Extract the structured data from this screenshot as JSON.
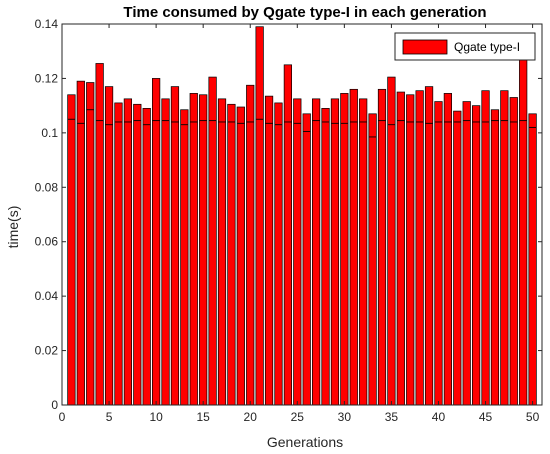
{
  "chart_data": {
    "type": "bar",
    "title": "Time consumed by Qgate type-I in each generation",
    "xlabel": "Generations",
    "ylabel": "time(s)",
    "xlim": [
      0,
      51
    ],
    "ylim": [
      0,
      0.14
    ],
    "xticks": [
      0,
      5,
      10,
      15,
      20,
      25,
      30,
      35,
      40,
      45,
      50
    ],
    "yticks": [
      0,
      0.02,
      0.04,
      0.06,
      0.08,
      0.1,
      0.12,
      0.14
    ],
    "ytick_labels": [
      "0",
      "0.02",
      "0.04",
      "0.06",
      "0.08",
      "0.1",
      "0.12",
      "0.14"
    ],
    "legend_position": "top-right",
    "grid": false,
    "bar_color": "#ff0000",
    "series": [
      {
        "name": "Qgate type-I",
        "x": [
          1,
          2,
          3,
          4,
          5,
          6,
          7,
          8,
          9,
          10,
          11,
          12,
          13,
          14,
          15,
          16,
          17,
          18,
          19,
          20,
          21,
          22,
          23,
          24,
          25,
          26,
          27,
          28,
          29,
          30,
          31,
          32,
          33,
          34,
          35,
          36,
          37,
          38,
          39,
          40,
          41,
          42,
          43,
          44,
          45,
          46,
          47,
          48,
          49,
          50
        ],
        "values": [
          0.114,
          0.119,
          0.1185,
          0.1255,
          0.117,
          0.111,
          0.1125,
          0.1105,
          0.109,
          0.12,
          0.1125,
          0.117,
          0.1085,
          0.1145,
          0.114,
          0.1205,
          0.1125,
          0.1105,
          0.1095,
          0.1175,
          0.139,
          0.1135,
          0.111,
          0.125,
          0.1125,
          0.107,
          0.1125,
          0.109,
          0.1125,
          0.1145,
          0.116,
          0.1125,
          0.107,
          0.116,
          0.1205,
          0.115,
          0.114,
          0.1155,
          0.117,
          0.1115,
          0.1145,
          0.108,
          0.1115,
          0.11,
          0.1155,
          0.1085,
          0.1155,
          0.113,
          0.128,
          0.107
        ],
        "inner_marks": [
          0.105,
          0.1035,
          0.1085,
          0.1045,
          0.103,
          0.104,
          0.104,
          0.1045,
          0.103,
          0.1045,
          0.1045,
          0.104,
          0.103,
          0.104,
          0.1045,
          0.1045,
          0.104,
          0.104,
          0.1035,
          0.104,
          0.105,
          0.1035,
          0.103,
          0.104,
          0.1035,
          0.1005,
          0.1045,
          0.104,
          0.1035,
          0.1035,
          0.104,
          0.104,
          0.0985,
          0.1045,
          0.103,
          0.1045,
          0.104,
          0.104,
          0.1035,
          0.104,
          0.104,
          0.104,
          0.1045,
          0.104,
          0.104,
          0.1045,
          0.1045,
          0.104,
          0.1045,
          0.102
        ]
      }
    ]
  }
}
